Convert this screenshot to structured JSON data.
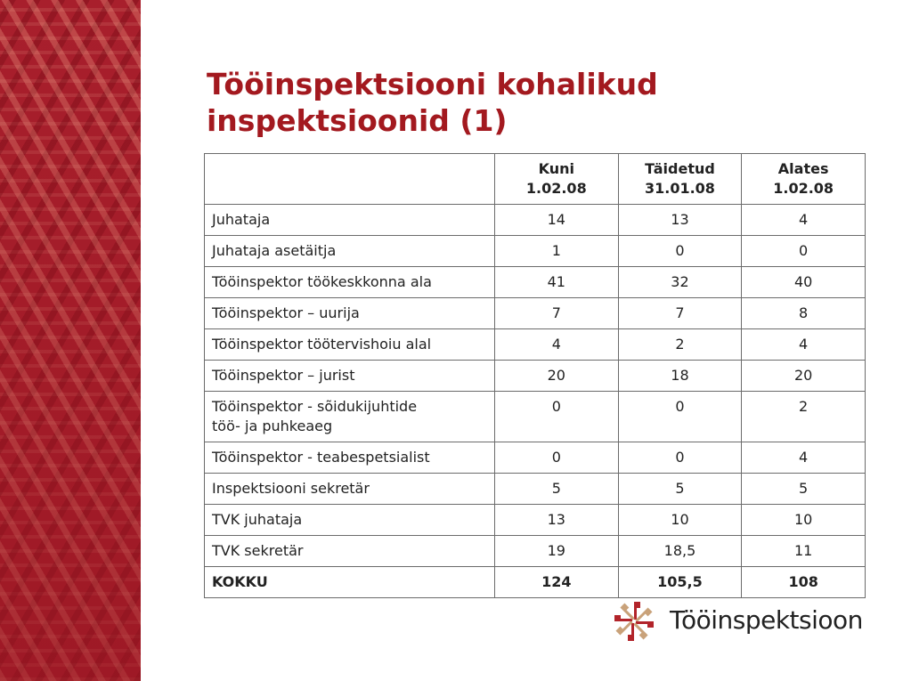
{
  "slide": {
    "title_line1": "Tööinspektsiooni kohalikud",
    "title_line2": "inspektsioonid (1)"
  },
  "table": {
    "headers": [
      "",
      "Kuni\n1.02.08",
      "Täidetud\n31.01.08",
      "Alates\n1.02.08"
    ],
    "rows": [
      [
        "Juhataja",
        "14",
        "13",
        "4"
      ],
      [
        "Juhataja asetäitja",
        "1",
        "0",
        "0"
      ],
      [
        "Tööinspektor töökeskkonna ala",
        "41",
        "32",
        "40"
      ],
      [
        "Tööinspektor – uurija",
        "7",
        "7",
        "8"
      ],
      [
        "Tööinspektor töötervishoiu alal",
        "4",
        "2",
        "4"
      ],
      [
        "Tööinspektor – jurist",
        "20",
        "18",
        "20"
      ],
      [
        "Tööinspektor  - sõidukijuhtide\ntöö- ja puhkeaeg",
        "0",
        "0",
        "2"
      ],
      [
        "Tööinspektor - teabespetsialist",
        "0",
        "0",
        "4"
      ],
      [
        "Inspektsiooni sekretär",
        "5",
        "5",
        "5"
      ],
      [
        "TVK juhataja",
        "13",
        "10",
        "10"
      ],
      [
        "TVK sekretär",
        "19",
        "18,5",
        "11"
      ],
      [
        "KOKKU",
        "124",
        "105,5",
        "108"
      ]
    ]
  },
  "logo": {
    "text": "Tööinspektsioon",
    "icon": "tooinspektsioon-logo-mark",
    "colors": {
      "red": "#b2242a",
      "tan": "#c9a27a"
    }
  },
  "colors": {
    "title": "#a3191f",
    "side_band": "#a81f2c",
    "table_border": "#6b6b6b"
  }
}
